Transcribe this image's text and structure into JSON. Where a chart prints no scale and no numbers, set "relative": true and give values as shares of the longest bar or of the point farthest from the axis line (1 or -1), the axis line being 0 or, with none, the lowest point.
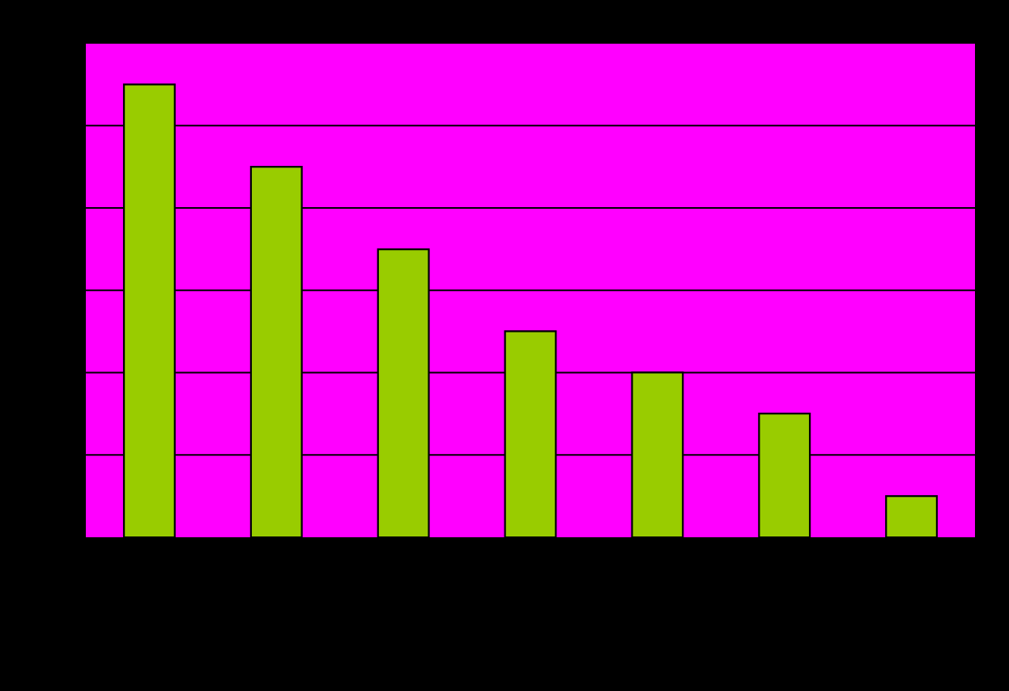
{
  "chart_data": {
    "type": "bar",
    "relative": true,
    "categories": [
      null,
      null,
      null,
      null,
      null,
      null,
      null
    ],
    "values": [
      1,
      0.818,
      0.636,
      0.455,
      0.364,
      0.273,
      0.091
    ],
    "color": "#99cc00",
    "grid": "y"
  }
}
